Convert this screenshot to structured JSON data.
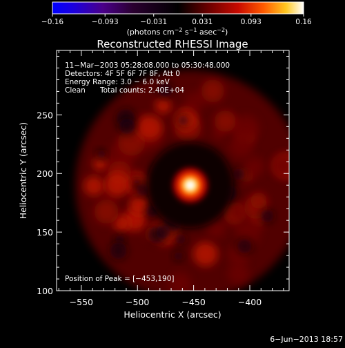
{
  "chart_data": {
    "type": "heatmap",
    "title": "Reconstructed RHESSI Image",
    "xlabel": "Heliocentric X (arcsec)",
    "ylabel": "Heliocentric Y (arcsec)",
    "xlim": [
      -572,
      -365
    ],
    "ylim": [
      100,
      305
    ],
    "x_ticks": [
      -550,
      -500,
      -450,
      -400
    ],
    "y_ticks": [
      100,
      150,
      200,
      250
    ],
    "x_tick_labels": [
      "−550",
      "−500",
      "−450",
      "−400"
    ],
    "y_tick_labels": [
      "100",
      "150",
      "200",
      "250"
    ],
    "colorbar": {
      "range": [
        -0.16,
        0.16
      ],
      "ticks": [
        -0.16,
        -0.093,
        -0.031,
        0.031,
        0.093,
        0.16
      ],
      "tick_labels": [
        "−0.16",
        "−0.093",
        "−0.031",
        "0.031",
        "0.093",
        "0.16"
      ],
      "unit_prefix": "(photons cm",
      "unit_sup1": "−2",
      "unit_mid": " s",
      "unit_sup2": "−1",
      "unit_mid2": " asec",
      "unit_sup3": "−2",
      "unit_suffix": ")"
    },
    "peak": {
      "x": -453,
      "y": 190,
      "intensity": 0.16
    },
    "ring": {
      "inner_radius_arcsec": 45,
      "outer_radius_arcsec": 90,
      "level": 0.045
    }
  },
  "annotations": {
    "time_range": "11−Mar−2003 05:28:08.000 to 05:30:48.000",
    "detectors": "Detectors: 4F 5F 6F 7F 8F, Att 0",
    "energy": "Energy Range: 3.0 − 6.0 keV",
    "method": "Clean",
    "total_counts": "Total counts: 2.40E+04",
    "peak_position": "Position of Peak = [−453,190]"
  },
  "footer": {
    "date_stamp": "6−Jun−2013 18:57"
  }
}
